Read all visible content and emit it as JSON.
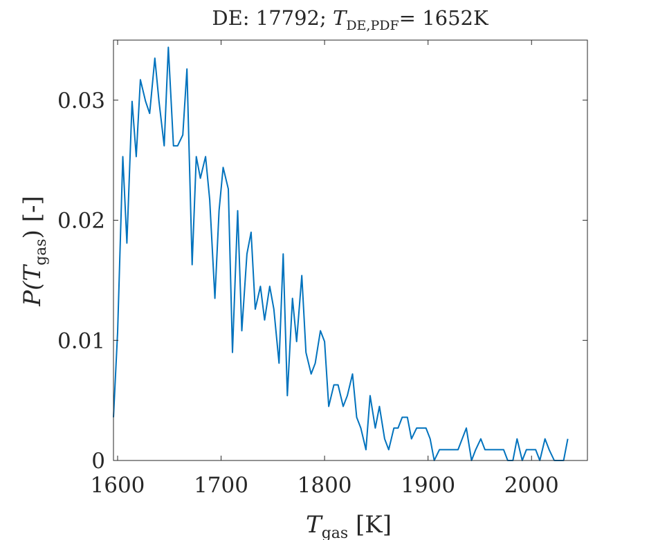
{
  "chart_data": {
    "type": "line",
    "title": {
      "prefix": "DE: 17792; ",
      "var": "T",
      "subscript": "DE,PDF",
      "suffix": "= 1652K"
    },
    "xlabel": {
      "var": "T",
      "subscript": "gas",
      "suffix": " [K]"
    },
    "ylabel": {
      "prefix": "P(",
      "var": "T",
      "subscript": "gas",
      "suffix": ") [-]"
    },
    "xlim": [
      1596,
      2054
    ],
    "ylim": [
      0,
      0.035
    ],
    "xticks": [
      {
        "value": 1600,
        "label": "1600"
      },
      {
        "value": 1700,
        "label": "1700"
      },
      {
        "value": 1800,
        "label": "1800"
      },
      {
        "value": 1900,
        "label": "1900"
      },
      {
        "value": 2000,
        "label": "2000"
      }
    ],
    "yticks": [
      {
        "value": 0,
        "label": "0"
      },
      {
        "value": 0.01,
        "label": "0.01"
      },
      {
        "value": 0.02,
        "label": "0.02"
      },
      {
        "value": 0.03,
        "label": "0.03"
      }
    ],
    "grid": false,
    "box": true,
    "series": [
      {
        "color": "#0072bd",
        "points": [
          [
            1596,
            0.0036
          ],
          [
            1600,
            0.0107
          ],
          [
            1605,
            0.0253
          ],
          [
            1609,
            0.0181
          ],
          [
            1614,
            0.0299
          ],
          [
            1618,
            0.0253
          ],
          [
            1622,
            0.0317
          ],
          [
            1627,
            0.0299
          ],
          [
            1631,
            0.0289
          ],
          [
            1636,
            0.0335
          ],
          [
            1640,
            0.0299
          ],
          [
            1645,
            0.0262
          ],
          [
            1649,
            0.0344
          ],
          [
            1654,
            0.0262
          ],
          [
            1658,
            0.0262
          ],
          [
            1663,
            0.0271
          ],
          [
            1667,
            0.0326
          ],
          [
            1672,
            0.0163
          ],
          [
            1676,
            0.0253
          ],
          [
            1680,
            0.0235
          ],
          [
            1685,
            0.0253
          ],
          [
            1689,
            0.0217
          ],
          [
            1694,
            0.0135
          ],
          [
            1698,
            0.0208
          ],
          [
            1702,
            0.0244
          ],
          [
            1707,
            0.0226
          ],
          [
            1711,
            0.009
          ],
          [
            1716,
            0.0208
          ],
          [
            1720,
            0.0108
          ],
          [
            1725,
            0.0172
          ],
          [
            1729,
            0.019
          ],
          [
            1733,
            0.0126
          ],
          [
            1738,
            0.0145
          ],
          [
            1742,
            0.0117
          ],
          [
            1747,
            0.0145
          ],
          [
            1751,
            0.0126
          ],
          [
            1756,
            0.0081
          ],
          [
            1760,
            0.0172
          ],
          [
            1764,
            0.0054
          ],
          [
            1769,
            0.0135
          ],
          [
            1773,
            0.0099
          ],
          [
            1778,
            0.0154
          ],
          [
            1782,
            0.009
          ],
          [
            1787,
            0.0072
          ],
          [
            1791,
            0.0081
          ],
          [
            1796,
            0.0108
          ],
          [
            1800,
            0.0099
          ],
          [
            1804,
            0.0045
          ],
          [
            1809,
            0.0063
          ],
          [
            1813,
            0.0063
          ],
          [
            1818,
            0.0045
          ],
          [
            1822,
            0.0054
          ],
          [
            1827,
            0.0072
          ],
          [
            1831,
            0.0036
          ],
          [
            1835,
            0.0027
          ],
          [
            1840,
            0.0009
          ],
          [
            1844,
            0.0054
          ],
          [
            1849,
            0.0027
          ],
          [
            1853,
            0.0045
          ],
          [
            1858,
            0.0018
          ],
          [
            1862,
            0.0009
          ],
          [
            1867,
            0.0027
          ],
          [
            1871,
            0.0027
          ],
          [
            1875,
            0.0036
          ],
          [
            1880,
            0.0036
          ],
          [
            1884,
            0.0018
          ],
          [
            1889,
            0.0027
          ],
          [
            1893,
            0.0027
          ],
          [
            1898,
            0.0027
          ],
          [
            1902,
            0.0018
          ],
          [
            1906,
            0.0
          ],
          [
            1911,
            0.0009
          ],
          [
            1915,
            0.0009
          ],
          [
            1920,
            0.0009
          ],
          [
            1924,
            0.0009
          ],
          [
            1929,
            0.0009
          ],
          [
            1933,
            0.0018
          ],
          [
            1937,
            0.0027
          ],
          [
            1942,
            0.0
          ],
          [
            1946,
            0.0009
          ],
          [
            1951,
            0.0018
          ],
          [
            1955,
            0.0009
          ],
          [
            1960,
            0.0009
          ],
          [
            1964,
            0.0009
          ],
          [
            1969,
            0.0009
          ],
          [
            1973,
            0.0009
          ],
          [
            1977,
            0.0
          ],
          [
            1982,
            0.0
          ],
          [
            1986,
            0.0018
          ],
          [
            1991,
            0.0
          ],
          [
            1995,
            0.0009
          ],
          [
            2000,
            0.0009
          ],
          [
            2004,
            0.0009
          ],
          [
            2008,
            0.0
          ],
          [
            2013,
            0.0018
          ],
          [
            2017,
            0.0009
          ],
          [
            2022,
            0.0
          ],
          [
            2026,
            0.0
          ],
          [
            2031,
            0.0
          ],
          [
            2035,
            0.0018
          ]
        ]
      }
    ]
  }
}
